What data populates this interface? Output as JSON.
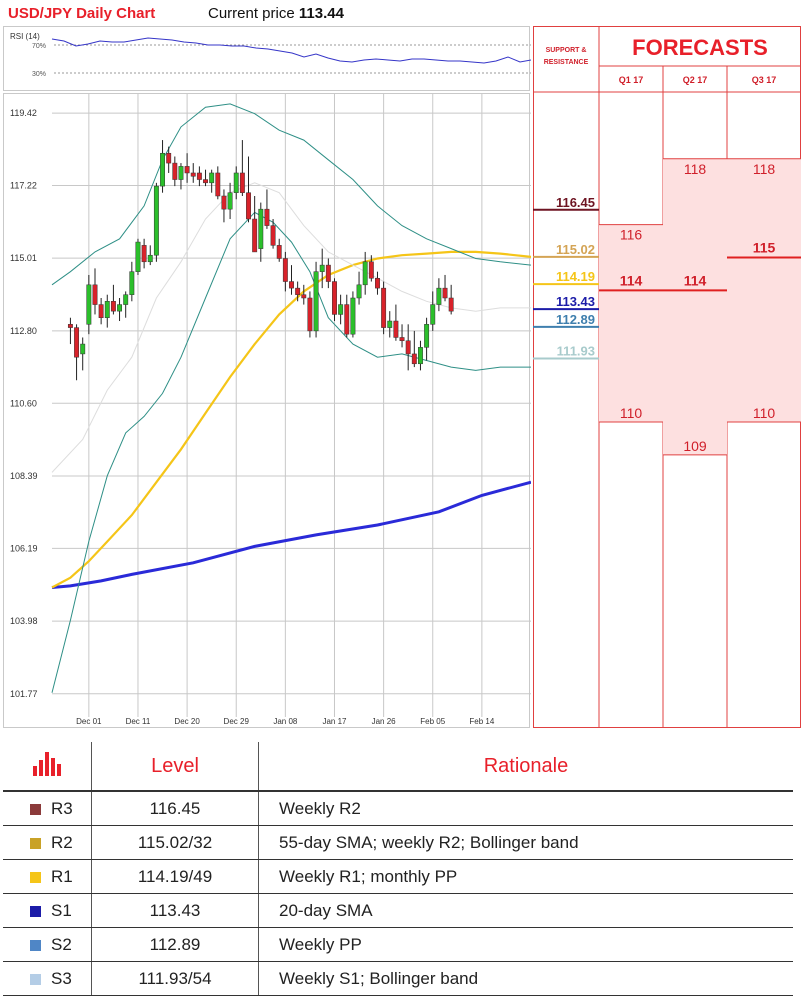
{
  "header": {
    "title": "USD/JPY Daily Chart",
    "price_label": "Current price",
    "price_value": "113.44"
  },
  "rsi": {
    "label": "RSI (14)",
    "ticks": [
      "70%",
      "30%"
    ]
  },
  "chart_data": {
    "type": "candlestick",
    "y_range": [
      100.7,
      120.0
    ],
    "y_ticks": [
      119.42,
      117.22,
      115.01,
      112.8,
      110.6,
      108.39,
      106.19,
      103.98,
      101.77
    ],
    "x_range": [
      -3,
      75
    ],
    "x_ticks": [
      {
        "label": "Dec 01",
        "index": 3
      },
      {
        "label": "Dec 11",
        "index": 11
      },
      {
        "label": "Dec 20",
        "index": 19
      },
      {
        "label": "Dec 29",
        "index": 27
      },
      {
        "label": "Jan 08",
        "index": 35
      },
      {
        "label": "Jan 17",
        "index": 43
      },
      {
        "label": "Jan 26",
        "index": 51
      },
      {
        "label": "Feb 05",
        "index": 59
      },
      {
        "label": "Feb 14",
        "index": 67
      }
    ],
    "candles": [
      [
        113.0,
        113.2,
        112.4,
        112.9
      ],
      [
        112.9,
        113.0,
        111.3,
        112.0
      ],
      [
        112.1,
        112.6,
        111.6,
        112.4
      ],
      [
        113.0,
        114.5,
        112.7,
        114.2
      ],
      [
        114.2,
        114.7,
        113.3,
        113.6
      ],
      [
        113.6,
        113.8,
        113.0,
        113.2
      ],
      [
        113.2,
        113.9,
        112.9,
        113.7
      ],
      [
        113.7,
        114.2,
        113.3,
        113.4
      ],
      [
        113.4,
        113.8,
        113.1,
        113.6
      ],
      [
        113.6,
        114.0,
        113.2,
        113.9
      ],
      [
        113.9,
        114.9,
        113.7,
        114.6
      ],
      [
        114.6,
        115.6,
        114.5,
        115.5
      ],
      [
        115.4,
        115.6,
        114.7,
        114.9
      ],
      [
        114.9,
        115.4,
        114.8,
        115.1
      ],
      [
        115.1,
        117.3,
        114.9,
        117.2
      ],
      [
        117.2,
        118.6,
        117.0,
        118.2
      ],
      [
        118.2,
        118.4,
        117.6,
        117.9
      ],
      [
        117.9,
        118.1,
        117.2,
        117.4
      ],
      [
        117.4,
        117.9,
        117.1,
        117.8
      ],
      [
        117.8,
        118.2,
        117.3,
        117.6
      ],
      [
        117.6,
        117.9,
        117.3,
        117.5
      ],
      [
        117.6,
        117.8,
        117.2,
        117.4
      ],
      [
        117.4,
        117.7,
        117.2,
        117.3
      ],
      [
        117.3,
        117.7,
        117.0,
        117.6
      ],
      [
        117.6,
        117.8,
        116.8,
        116.9
      ],
      [
        116.9,
        117.1,
        116.1,
        116.5
      ],
      [
        116.5,
        117.3,
        116.2,
        117.0
      ],
      [
        117.0,
        117.8,
        116.8,
        117.6
      ],
      [
        117.6,
        118.6,
        116.9,
        117.0
      ],
      [
        117.0,
        118.1,
        116.1,
        116.2
      ],
      [
        116.2,
        116.9,
        115.2,
        115.2
      ],
      [
        115.3,
        116.7,
        114.9,
        116.5
      ],
      [
        116.5,
        117.1,
        115.9,
        116.0
      ],
      [
        116.0,
        116.2,
        115.3,
        115.4
      ],
      [
        115.4,
        115.6,
        114.9,
        115.0
      ],
      [
        115.0,
        115.2,
        114.0,
        114.3
      ],
      [
        114.3,
        114.8,
        113.9,
        114.1
      ],
      [
        114.1,
        114.3,
        113.7,
        113.9
      ],
      [
        113.9,
        114.2,
        113.6,
        113.8
      ],
      [
        113.8,
        114.0,
        112.6,
        112.8
      ],
      [
        112.8,
        114.9,
        112.6,
        114.6
      ],
      [
        114.6,
        115.3,
        114.1,
        114.8
      ],
      [
        114.8,
        115.0,
        114.1,
        114.3
      ],
      [
        114.3,
        114.4,
        113.1,
        113.3
      ],
      [
        113.3,
        113.9,
        113.0,
        113.6
      ],
      [
        113.6,
        113.9,
        112.6,
        112.7
      ],
      [
        112.7,
        114.0,
        112.6,
        113.8
      ],
      [
        113.8,
        114.6,
        113.6,
        114.2
      ],
      [
        114.2,
        115.2,
        113.9,
        114.9
      ],
      [
        114.9,
        115.1,
        114.3,
        114.4
      ],
      [
        114.4,
        114.6,
        113.9,
        114.1
      ],
      [
        114.1,
        114.3,
        112.7,
        112.9
      ],
      [
        112.9,
        113.4,
        112.6,
        113.1
      ],
      [
        113.1,
        113.6,
        112.5,
        112.6
      ],
      [
        112.6,
        113.0,
        112.3,
        112.5
      ],
      [
        112.5,
        113.0,
        111.6,
        112.1
      ],
      [
        112.1,
        112.8,
        111.7,
        111.8
      ],
      [
        111.8,
        112.5,
        111.6,
        112.3
      ],
      [
        112.3,
        113.2,
        111.9,
        113.0
      ],
      [
        113.0,
        114.0,
        112.8,
        113.6
      ],
      [
        113.6,
        114.4,
        113.4,
        114.1
      ],
      [
        114.1,
        114.5,
        113.7,
        113.8
      ],
      [
        113.8,
        114.2,
        113.3,
        113.4
      ]
    ],
    "series": [
      {
        "key": "sma200",
        "color": "#2a2ad8",
        "points": [
          [
            -3,
            105.0
          ],
          [
            0,
            105.05
          ],
          [
            5,
            105.2
          ],
          [
            10,
            105.4
          ],
          [
            20,
            105.75
          ],
          [
            30,
            106.25
          ],
          [
            40,
            106.6
          ],
          [
            50,
            106.9
          ],
          [
            60,
            107.3
          ],
          [
            67,
            107.8
          ],
          [
            75,
            108.2
          ]
        ]
      },
      {
        "key": "sma55",
        "color": "#f5c518",
        "points": [
          [
            -3,
            105.0
          ],
          [
            0,
            105.3
          ],
          [
            3,
            105.8
          ],
          [
            6,
            106.4
          ],
          [
            10,
            107.2
          ],
          [
            14,
            108.2
          ],
          [
            18,
            109.2
          ],
          [
            22,
            110.3
          ],
          [
            26,
            111.4
          ],
          [
            30,
            112.4
          ],
          [
            34,
            113.3
          ],
          [
            38,
            114.0
          ],
          [
            42,
            114.5
          ],
          [
            46,
            114.8
          ],
          [
            50,
            115.0
          ],
          [
            54,
            115.1
          ],
          [
            58,
            115.15
          ],
          [
            62,
            115.2
          ],
          [
            66,
            115.2
          ],
          [
            70,
            115.15
          ],
          [
            75,
            115.05
          ]
        ]
      },
      {
        "key": "sma20",
        "color": "#dddddd",
        "points": [
          [
            -3,
            108.5
          ],
          [
            2,
            109.5
          ],
          [
            6,
            111.0
          ],
          [
            10,
            112.0
          ],
          [
            14,
            113.8
          ],
          [
            18,
            114.9
          ],
          [
            22,
            116.2
          ],
          [
            26,
            117.0
          ],
          [
            30,
            117.3
          ],
          [
            34,
            117.0
          ],
          [
            38,
            116.0
          ],
          [
            42,
            115.2
          ],
          [
            46,
            114.8
          ],
          [
            50,
            114.4
          ],
          [
            54,
            114.0
          ],
          [
            58,
            113.7
          ],
          [
            62,
            113.5
          ],
          [
            66,
            113.4
          ],
          [
            70,
            113.5
          ],
          [
            75,
            113.5
          ]
        ]
      },
      {
        "key": "bb_upper",
        "color": "#2e8f86",
        "points": [
          [
            -3,
            114.2
          ],
          [
            0,
            114.6
          ],
          [
            4,
            115.2
          ],
          [
            8,
            115.6
          ],
          [
            12,
            116.6
          ],
          [
            15,
            118.0
          ],
          [
            18,
            119.0
          ],
          [
            22,
            119.6
          ],
          [
            26,
            119.7
          ],
          [
            30,
            119.4
          ],
          [
            34,
            118.9
          ],
          [
            38,
            118.6
          ],
          [
            42,
            118.0
          ],
          [
            46,
            117.4
          ],
          [
            50,
            116.6
          ],
          [
            54,
            116.0
          ],
          [
            58,
            115.6
          ],
          [
            62,
            115.3
          ],
          [
            66,
            115.0
          ],
          [
            70,
            114.9
          ],
          [
            75,
            114.8
          ]
        ]
      },
      {
        "key": "bb_lower",
        "color": "#2e8f86",
        "points": [
          [
            -3,
            101.8
          ],
          [
            0,
            104.0
          ],
          [
            3,
            106.4
          ],
          [
            6,
            108.4
          ],
          [
            9,
            109.7
          ],
          [
            12,
            110.2
          ],
          [
            15,
            110.9
          ],
          [
            18,
            112.0
          ],
          [
            22,
            113.8
          ],
          [
            26,
            115.6
          ],
          [
            30,
            116.4
          ],
          [
            33,
            116.1
          ],
          [
            36,
            115.5
          ],
          [
            39,
            114.6
          ],
          [
            42,
            113.2
          ],
          [
            46,
            112.4
          ],
          [
            50,
            112.0
          ],
          [
            54,
            112.1
          ],
          [
            58,
            111.9
          ],
          [
            62,
            111.7
          ],
          [
            66,
            111.6
          ],
          [
            70,
            111.7
          ],
          [
            75,
            111.7
          ]
        ]
      }
    ],
    "levels": [
      {
        "label": "116.45",
        "value": 116.45,
        "color": "#6e1422"
      },
      {
        "label": "115.02",
        "value": 115.02,
        "color": "#d4a455"
      },
      {
        "label": "114.19",
        "value": 114.19,
        "color": "#f5c518"
      },
      {
        "label": "113.43",
        "value": 113.43,
        "color": "#1c1ca8"
      },
      {
        "label": "112.89",
        "value": 112.89,
        "color": "#3f7fae"
      },
      {
        "label": "111.93",
        "value": 111.93,
        "color": "#a8cbcc"
      }
    ],
    "forecasts": {
      "columns": [
        "Q1 17",
        "Q2 17",
        "Q3 17"
      ],
      "ranges": [
        {
          "high": "116",
          "high_value": 116,
          "mid": "114",
          "mid_value": 114,
          "low": "110",
          "low_value": 110
        },
        {
          "high": "118",
          "high_value": 118,
          "mid": "114",
          "mid_value": 114,
          "low": "109",
          "low_value": 109
        },
        {
          "high": "118",
          "high_value": 118,
          "mid": "115",
          "mid_value": 115,
          "low": "110",
          "low_value": 110
        }
      ]
    }
  },
  "forecast_panel": {
    "title": "FORECASTS",
    "sr_label_line1": "SUPPORT &",
    "sr_label_line2": "RESISTANCE"
  },
  "table": {
    "headers": {
      "level": "Level",
      "rationale": "Rationale"
    },
    "rows": [
      {
        "name": "R3",
        "level": "116.45",
        "rationale": "Weekly R2",
        "color": "#8b3a3a"
      },
      {
        "name": "R2",
        "level": "115.02/32",
        "rationale": "55-day SMA; weekly R2; Bollinger band",
        "color": "#c9a227"
      },
      {
        "name": "R1",
        "level": "114.19/49",
        "rationale": "Weekly R1; monthly PP",
        "color": "#f5c518"
      },
      {
        "name": "S1",
        "level": "113.43",
        "rationale": "20-day SMA",
        "color": "#1c1ca8"
      },
      {
        "name": "S2",
        "level": "112.89",
        "rationale": "Weekly PP",
        "color": "#4f86c6"
      },
      {
        "name": "S3",
        "level": "111.93/54",
        "rationale": "Weekly S1; Bollinger band",
        "color": "#b4cde6"
      }
    ]
  }
}
